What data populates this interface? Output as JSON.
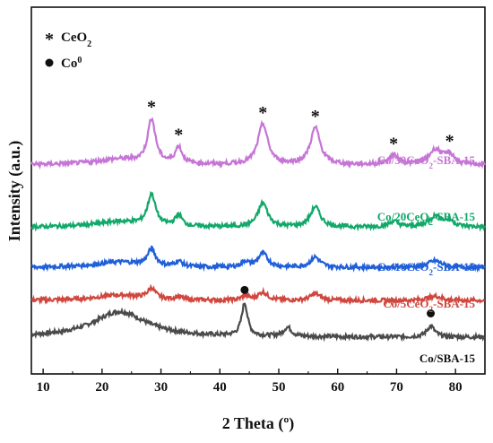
{
  "chart_data": {
    "type": "line",
    "title": "",
    "xlabel": "2 Theta (º)",
    "ylabel": "Intensity (a.u.)",
    "xlim": [
      8,
      85
    ],
    "xticks": [
      10,
      20,
      30,
      40,
      50,
      60,
      70,
      80
    ],
    "yticks_shown": false,
    "legend": {
      "placement": "top-left",
      "entries": [
        {
          "symbol": "*",
          "label": "CeO",
          "sub": "2"
        },
        {
          "symbol": "●",
          "label": "Co",
          "sup": "0"
        }
      ]
    },
    "series": [
      {
        "name": "Co/SBA-15",
        "label_parts": [
          "Co/SBA-15"
        ],
        "color": "#4a4a4a",
        "baseline": 10,
        "peaks": [
          {
            "x": 23,
            "height": 7,
            "width": 5.5
          },
          {
            "x": 44.2,
            "height": 9,
            "width": 0.6
          },
          {
            "x": 51.5,
            "height": 2.5,
            "width": 0.8
          },
          {
            "x": 75.8,
            "height": 3,
            "width": 0.8
          }
        ],
        "markers": [
          {
            "x": 44.2,
            "symbol": "●"
          },
          {
            "x": 75.8,
            "symbol": "●"
          }
        ]
      },
      {
        "name": "Co/5CeO2-SBA-15",
        "label_parts": [
          "Co/5CeO",
          "2",
          "-SBA-15"
        ],
        "color": "#d0473f",
        "baseline": 20,
        "peaks": [
          {
            "x": 23,
            "height": 1.5,
            "width": 5
          },
          {
            "x": 28.4,
            "height": 2.8,
            "width": 0.8
          },
          {
            "x": 33,
            "height": 0.8,
            "width": 0.7
          },
          {
            "x": 44.3,
            "height": 1.2,
            "width": 0.7
          },
          {
            "x": 47.3,
            "height": 2.2,
            "width": 1.0
          },
          {
            "x": 56.2,
            "height": 1.8,
            "width": 1.0
          },
          {
            "x": 76.5,
            "height": 1.2,
            "width": 1.5
          }
        ],
        "markers": []
      },
      {
        "name": "Co/10CeO2-SBA-15",
        "label_parts": [
          "Co/10CeO",
          "2",
          "-SBA-15"
        ],
        "color": "#1f5fd8",
        "baseline": 29,
        "peaks": [
          {
            "x": 23,
            "height": 1.5,
            "width": 5
          },
          {
            "x": 28.4,
            "height": 4.5,
            "width": 0.8
          },
          {
            "x": 33,
            "height": 1.5,
            "width": 0.7
          },
          {
            "x": 44.3,
            "height": 1.5,
            "width": 0.7
          },
          {
            "x": 47.3,
            "height": 3.8,
            "width": 1.0
          },
          {
            "x": 56.2,
            "height": 2.8,
            "width": 1.0
          },
          {
            "x": 76.5,
            "height": 1.8,
            "width": 1.5
          }
        ],
        "markers": []
      },
      {
        "name": "Co/20CeO2-SBA-15",
        "label_parts": [
          "Co/20CeO",
          "2",
          "-SBA-15"
        ],
        "color": "#12a86a",
        "baseline": 40,
        "peaks": [
          {
            "x": 23,
            "height": 1.5,
            "width": 5
          },
          {
            "x": 28.4,
            "height": 8.5,
            "width": 0.8
          },
          {
            "x": 33,
            "height": 3,
            "width": 0.7
          },
          {
            "x": 47.3,
            "height": 6.5,
            "width": 1.0
          },
          {
            "x": 56.2,
            "height": 5.5,
            "width": 1.0
          },
          {
            "x": 69.5,
            "height": 1.5,
            "width": 1.0
          },
          {
            "x": 76.6,
            "height": 3,
            "width": 1.3
          },
          {
            "x": 79,
            "height": 1.5,
            "width": 1.0
          }
        ],
        "markers": []
      },
      {
        "name": "Co/30CeO2-SBA-15",
        "label_parts": [
          "Co/30CeO",
          "2",
          "-SBA-15"
        ],
        "color": "#c674d6",
        "baseline": 57,
        "peaks": [
          {
            "x": 23,
            "height": 1.5,
            "width": 5
          },
          {
            "x": 28.4,
            "height": 12,
            "width": 0.8
          },
          {
            "x": 33,
            "height": 4.5,
            "width": 0.7
          },
          {
            "x": 47.3,
            "height": 11,
            "width": 1.0
          },
          {
            "x": 56.2,
            "height": 10,
            "width": 1.0
          },
          {
            "x": 69.5,
            "height": 2.5,
            "width": 1.0
          },
          {
            "x": 76.6,
            "height": 4,
            "width": 1.3
          },
          {
            "x": 79,
            "height": 2.5,
            "width": 1.0
          }
        ],
        "markers": [
          {
            "x": 28.4,
            "symbol": "*"
          },
          {
            "x": 33,
            "symbol": "*"
          },
          {
            "x": 47.3,
            "symbol": "*"
          },
          {
            "x": 56.2,
            "symbol": "*"
          },
          {
            "x": 69.5,
            "symbol": "*"
          },
          {
            "x": 79,
            "symbol": "*"
          }
        ]
      }
    ]
  }
}
